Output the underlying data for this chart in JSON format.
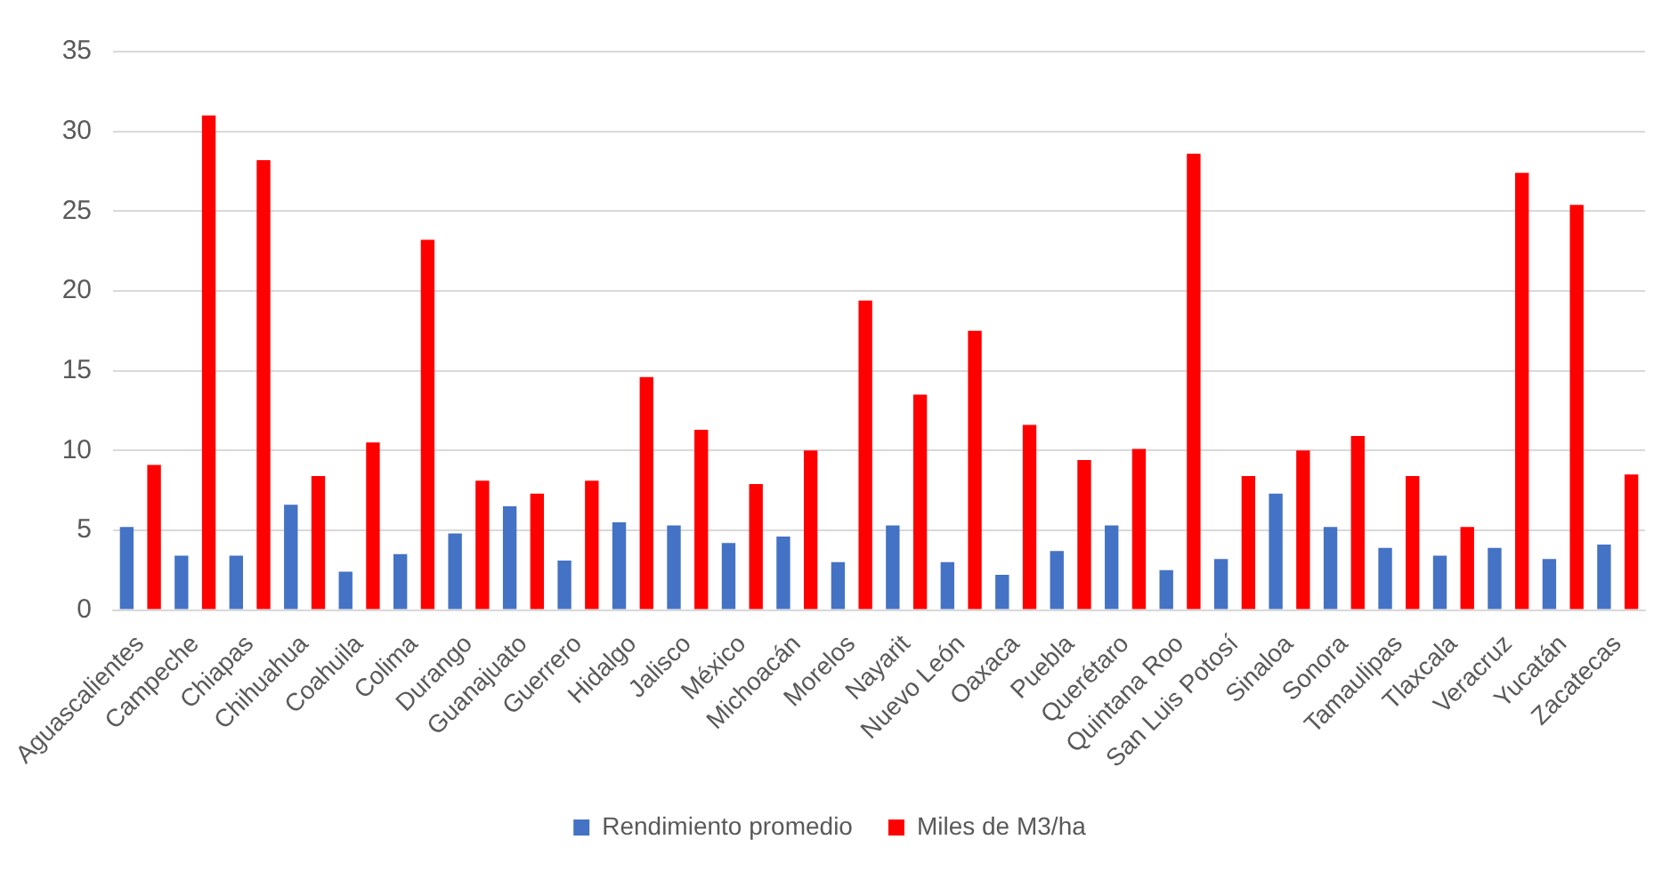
{
  "chart_data": {
    "type": "bar",
    "categories": [
      "Aguascalientes",
      "Campeche",
      "Chiapas",
      "Chihuahua",
      "Coahuila",
      "Colima",
      "Durango",
      "Guanajuato",
      "Guerrero",
      "Hidalgo",
      "Jalisco",
      "México",
      "Michoacán",
      "Morelos",
      "Nayarit",
      "Nuevo León",
      "Oaxaca",
      "Puebla",
      "Querétaro",
      "Quintana Roo",
      "San Luis Potosí",
      "Sinaloa",
      "Sonora",
      "Tamaulipas",
      "Tlaxcala",
      "Veracruz",
      "Yucatán",
      "Zacatecas"
    ],
    "series": [
      {
        "name": "Rendimiento promedio",
        "color": "#4472c4",
        "values": [
          5.2,
          3.4,
          3.4,
          6.6,
          2.4,
          3.5,
          4.8,
          6.5,
          3.1,
          5.5,
          5.3,
          4.2,
          4.6,
          3.0,
          5.3,
          3.0,
          2.2,
          3.7,
          5.3,
          2.5,
          3.2,
          7.3,
          5.2,
          3.9,
          3.4,
          3.9,
          3.2,
          4.1
        ]
      },
      {
        "name": "Miles de M3/ha",
        "color": "#ff0000",
        "values": [
          9.1,
          31.0,
          28.2,
          8.4,
          10.5,
          23.2,
          8.1,
          7.3,
          8.1,
          14.6,
          11.3,
          7.9,
          10.0,
          19.4,
          13.5,
          17.5,
          11.6,
          9.4,
          10.1,
          28.6,
          8.4,
          10.0,
          10.9,
          8.4,
          5.2,
          27.4,
          25.4,
          8.5
        ]
      }
    ],
    "ylim": [
      0,
      35
    ],
    "yticks": [
      0,
      5,
      10,
      15,
      20,
      25,
      30,
      35
    ],
    "grid": "y",
    "legend": "bottom"
  }
}
